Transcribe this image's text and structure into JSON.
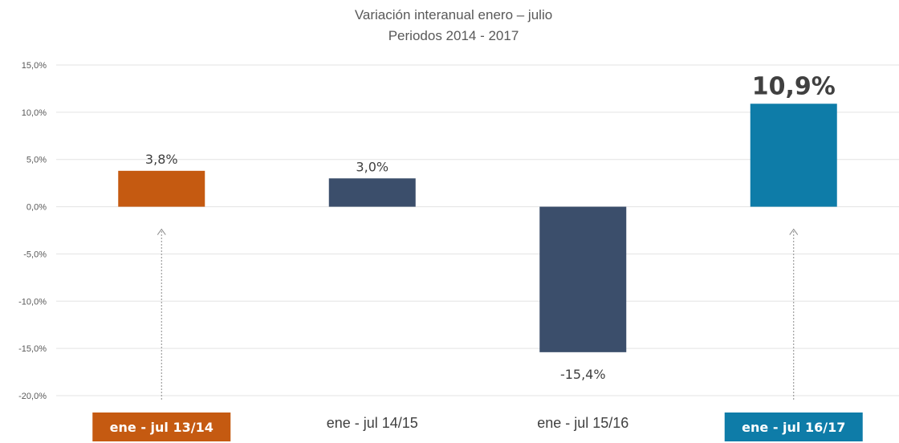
{
  "chart_data": {
    "type": "bar",
    "title": "Variación interanual enero – julio",
    "subtitle": "Periodos 2014 - 2017",
    "categories": [
      "ene - jul 13/14",
      "ene - jul 14/15",
      "ene - jul 15/16",
      "ene - jul 16/17"
    ],
    "values": [
      3.8,
      3.0,
      -15.4,
      10.9
    ],
    "data_labels": [
      "3,8%",
      "3,0%",
      "-15,4%",
      "10,9%"
    ],
    "bar_colors": [
      "#c55a11",
      "#3b4e6b",
      "#3b4e6b",
      "#0e7ca8"
    ],
    "highlighted": [
      true,
      false,
      false,
      true
    ],
    "arrows_to": [
      0,
      3
    ],
    "ylim": [
      -20,
      15
    ],
    "yticks": [
      15,
      10,
      5,
      0,
      -5,
      -10,
      -15,
      -20
    ],
    "ytick_labels": [
      "15,0%",
      "10,0%",
      "5,0%",
      "0,0%",
      "-5,0%",
      "-10,0%",
      "-15,0%",
      "-20,0%"
    ],
    "grid": true,
    "legend": "none"
  }
}
